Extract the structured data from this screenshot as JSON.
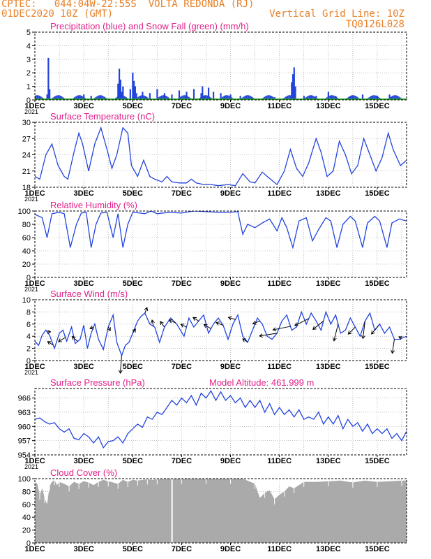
{
  "header": {
    "line1_left": "CPTEC:   044:04W-22:55S  VOLTA REDONDA (RJ)",
    "line2_left": "01DEC2020 10Z (GMT)",
    "line2_right": "Vertical Grid Line: 10Z",
    "line3_right": "TQ0126L028"
  },
  "colors": {
    "title": "#e0218a",
    "series": "#2244dd",
    "snow": "#2a9d2a",
    "cloud": "#aaaaaa",
    "header": "#e8822a"
  },
  "chart_data": [
    {
      "type": "bar",
      "title": "Precipitation (blue) and Snow Fall (green) (mm/h)",
      "ylim": [
        0,
        5
      ],
      "yticks": [
        0,
        1,
        2,
        3,
        4,
        5
      ],
      "xticks": [
        "1DEC",
        "3DEC",
        "5DEC",
        "7DEC",
        "9DEC",
        "11DEC",
        "13DEC",
        "15DEC"
      ],
      "cut_label": "2021",
      "series": [
        {
          "name": "precipitation",
          "x_day": [
            1.5,
            1.55,
            1.6,
            3.0,
            3.3,
            4.4,
            4.45,
            4.5,
            4.55,
            4.6,
            4.9,
            5.0,
            5.05,
            5.1,
            5.15,
            5.4,
            5.7,
            6.0,
            6.3,
            6.6,
            6.9,
            7.2,
            7.5,
            7.8,
            7.85,
            7.9,
            8.1,
            8.3,
            8.6,
            9.0,
            9.4,
            10.8,
            11.5,
            11.55,
            11.6,
            11.65,
            12.0,
            12.5,
            13.0,
            13.3,
            14.0,
            14.4,
            15.0,
            15.5
          ],
          "values": [
            0.4,
            3.1,
            0.8,
            0.4,
            0.3,
            1.2,
            2.3,
            1.5,
            0.6,
            1.0,
            0.8,
            2.0,
            1.4,
            1.0,
            0.5,
            0.6,
            0.5,
            0.8,
            0.5,
            0.4,
            0.7,
            0.6,
            0.8,
            0.5,
            1.0,
            0.3,
            0.9,
            0.6,
            0.5,
            0.4,
            0.3,
            0.2,
            1.3,
            1.9,
            2.4,
            1.0,
            0.3,
            0.3,
            0.6,
            0.3,
            0.3,
            0.4,
            0.3,
            0.4
          ]
        },
        {
          "name": "snow",
          "x_day": [],
          "values": []
        }
      ]
    },
    {
      "type": "line",
      "title": "Surface Temperature (nC)",
      "ylim": [
        18,
        30
      ],
      "yticks": [
        18,
        21,
        24,
        27,
        30
      ],
      "xticks": [
        "1DEC",
        "3DEC",
        "5DEC",
        "7DEC",
        "9DEC",
        "11DEC",
        "13DEC",
        "15DEC"
      ],
      "cut_label": "2021",
      "x_day": [
        1.0,
        1.2,
        1.45,
        1.7,
        1.95,
        2.2,
        2.35,
        2.6,
        2.8,
        2.95,
        3.2,
        3.45,
        3.7,
        3.95,
        4.15,
        4.35,
        4.6,
        4.8,
        4.95,
        5.2,
        5.45,
        5.7,
        5.9,
        6.2,
        6.4,
        6.6,
        6.9,
        7.2,
        7.4,
        7.6,
        7.9,
        8.2,
        8.5,
        8.9,
        9.2,
        9.5,
        9.8,
        10.0,
        10.3,
        10.5,
        10.9,
        11.2,
        11.45,
        11.7,
        11.95,
        12.2,
        12.5,
        12.7,
        12.95,
        13.2,
        13.45,
        13.7,
        13.95,
        14.2,
        14.45,
        14.7,
        14.95,
        15.2,
        15.45,
        15.65,
        15.95,
        16.2
      ],
      "values": [
        20,
        19.5,
        24,
        26,
        22,
        20,
        19.5,
        24.5,
        28,
        26,
        21,
        26,
        29,
        25,
        21.5,
        24,
        29,
        28,
        22,
        20,
        23,
        20,
        19.5,
        19,
        20,
        19,
        18.8,
        18.8,
        19.5,
        18.8,
        18.5,
        18.5,
        18.3,
        18.5,
        18.3,
        20.5,
        19,
        18.8,
        20.8,
        20,
        18.5,
        21,
        25,
        21.5,
        20,
        22.5,
        27,
        24.5,
        20,
        21,
        26.5,
        24,
        20.5,
        22,
        27,
        24,
        21,
        23.5,
        28,
        25,
        22,
        23
      ]
    },
    {
      "type": "line",
      "title": "Relative Humidity (%)",
      "ylim": [
        0,
        100
      ],
      "yticks": [
        0,
        20,
        40,
        60,
        80,
        100
      ],
      "xticks": [
        "1DEC",
        "3DEC",
        "5DEC",
        "7DEC",
        "9DEC",
        "11DEC",
        "13DEC",
        "15DEC"
      ],
      "cut_label": "2021",
      "x_day": [
        1.0,
        1.3,
        1.5,
        1.7,
        2.0,
        2.2,
        2.45,
        2.7,
        2.9,
        3.1,
        3.3,
        3.5,
        3.7,
        3.95,
        4.2,
        4.4,
        4.6,
        4.8,
        5.0,
        5.3,
        5.5,
        5.75,
        6.0,
        6.5,
        7.0,
        7.5,
        8.0,
        8.5,
        9.0,
        9.3,
        9.5,
        9.7,
        10.0,
        10.3,
        10.6,
        10.9,
        11.1,
        11.3,
        11.55,
        11.8,
        12.1,
        12.35,
        12.6,
        12.9,
        13.1,
        13.35,
        13.6,
        13.9,
        14.1,
        14.4,
        14.6,
        14.9,
        15.1,
        15.4,
        15.6,
        15.9,
        16.2
      ],
      "values": [
        95,
        90,
        60,
        96,
        98,
        96,
        45,
        80,
        97,
        98,
        45,
        80,
        97,
        98,
        60,
        96,
        45,
        80,
        98,
        97,
        96,
        100,
        96,
        98,
        97,
        100,
        99,
        98,
        98,
        99,
        65,
        80,
        75,
        82,
        88,
        70,
        90,
        75,
        45,
        85,
        90,
        55,
        72,
        90,
        85,
        45,
        80,
        92,
        85,
        45,
        82,
        92,
        85,
        45,
        82,
        88,
        85
      ]
    },
    {
      "type": "line",
      "title": "Surface Wind (m/s)",
      "ylim": [
        0,
        10
      ],
      "yticks": [
        0,
        2,
        4,
        6,
        8,
        10
      ],
      "xticks": [
        "1DEC",
        "3DEC",
        "5DEC",
        "7DEC",
        "9DEC",
        "11DEC",
        "13DEC",
        "15DEC"
      ],
      "cut_label": "2021",
      "x_day": [
        1.0,
        1.15,
        1.3,
        1.45,
        1.6,
        1.8,
        2.0,
        2.15,
        2.3,
        2.5,
        2.65,
        2.85,
        3.0,
        3.15,
        3.3,
        3.45,
        3.6,
        3.8,
        4.0,
        4.2,
        4.35,
        4.55,
        4.7,
        4.85,
        5.0,
        5.2,
        5.35,
        5.5,
        5.7,
        5.9,
        6.1,
        6.3,
        6.55,
        6.8,
        7.1,
        7.3,
        7.5,
        7.7,
        7.9,
        8.1,
        8.3,
        8.5,
        8.7,
        8.9,
        9.1,
        9.3,
        9.5,
        9.7,
        9.9,
        10.1,
        10.3,
        10.5,
        10.7,
        10.9,
        11.1,
        11.3,
        11.5,
        11.7,
        11.9,
        12.1,
        12.3,
        12.5,
        12.7,
        12.9,
        13.1,
        13.3,
        13.5,
        13.7,
        13.9,
        14.1,
        14.3,
        14.5,
        14.7,
        14.9,
        15.1,
        15.3,
        15.5,
        15.7,
        15.9,
        16.2
      ],
      "values": [
        3.2,
        2.5,
        4.2,
        5.0,
        4.2,
        2.0,
        4.5,
        5.0,
        3.2,
        5.5,
        2.8,
        3.5,
        5.8,
        2.0,
        4.5,
        6.0,
        3.5,
        1.8,
        5.5,
        7.5,
        3.0,
        0.8,
        2.5,
        3.0,
        4.5,
        6.5,
        7.3,
        7.8,
        6.0,
        5.5,
        3.0,
        5.5,
        7.0,
        6.0,
        4.0,
        7.0,
        5.5,
        6.5,
        7.5,
        4.5,
        6.0,
        7.0,
        5.8,
        3.5,
        6.0,
        7.5,
        4.0,
        3.0,
        5.0,
        7.0,
        6.0,
        4.0,
        3.5,
        4.5,
        6.5,
        7.5,
        5.0,
        5.5,
        8.0,
        6.0,
        7.8,
        6.5,
        5.0,
        8.0,
        6.0,
        7.5,
        4.5,
        5.0,
        7.0,
        5.5,
        4.0,
        6.5,
        7.8,
        5.0,
        6.0,
        4.5,
        5.5,
        3.5,
        3.5,
        4.0
      ],
      "vectors": {
        "x_day": [
          1.5,
          1.75,
          2.25,
          2.75,
          3.4,
          4.0,
          4.55,
          5.0,
          5.5,
          5.85,
          6.3,
          6.75,
          7.2,
          7.7,
          8.2,
          8.7,
          9.2,
          9.7,
          10.2,
          10.9,
          11.45,
          12.2,
          12.8,
          13.4,
          14.1,
          14.5,
          15.05,
          15.7,
          16.0
        ],
        "u": [
          0.5,
          -0.8,
          -1.0,
          -0.8,
          -0.5,
          0.3,
          -0.2,
          0.4,
          0.3,
          -0.2,
          -0.6,
          -0.9,
          -0.8,
          -0.8,
          -1.0,
          -1.0,
          -1.0,
          -0.7,
          -1.0,
          -2.5,
          -2.5,
          -2.0,
          -1.5,
          -0.6,
          -1.0,
          -0.3,
          -1.0,
          -0.3,
          -0.4
        ],
        "v": [
          0.0,
          0.5,
          -0.6,
          0.7,
          -0.2,
          -0.5,
          -2.5,
          0.6,
          0.8,
          0.9,
          0.8,
          0.4,
          0.4,
          0.5,
          0.6,
          0.4,
          0.3,
          0.5,
          -0.4,
          -0.4,
          -0.5,
          -1.0,
          -1.2,
          -2.4,
          -1.0,
          -2.5,
          -1.2,
          -2.0,
          0.2
        ]
      }
    },
    {
      "type": "line",
      "title": "Surface Pressure (hPa)",
      "extra_label": "Model Altitude: 461.999 m",
      "ylim": [
        954,
        968
      ],
      "yticks": [
        954,
        957,
        960,
        963,
        966
      ],
      "xticks": [
        "1DEC",
        "3DEC",
        "5DEC",
        "7DEC",
        "9DEC",
        "11DEC",
        "13DEC",
        "15DEC"
      ],
      "cut_label": "2021",
      "x_day": [
        1.0,
        1.2,
        1.4,
        1.6,
        1.8,
        2.0,
        2.2,
        2.4,
        2.6,
        2.8,
        3.0,
        3.2,
        3.4,
        3.6,
        3.8,
        4.0,
        4.2,
        4.4,
        4.6,
        4.8,
        5.0,
        5.2,
        5.4,
        5.6,
        5.8,
        6.0,
        6.2,
        6.4,
        6.6,
        6.8,
        7.0,
        7.2,
        7.4,
        7.6,
        7.8,
        8.0,
        8.2,
        8.4,
        8.6,
        8.8,
        9.0,
        9.2,
        9.4,
        9.6,
        9.8,
        10.0,
        10.2,
        10.4,
        10.6,
        10.8,
        11.0,
        11.2,
        11.4,
        11.6,
        11.8,
        12.0,
        12.2,
        12.4,
        12.6,
        12.8,
        13.0,
        13.2,
        13.4,
        13.6,
        13.8,
        14.0,
        14.2,
        14.4,
        14.6,
        14.8,
        15.0,
        15.2,
        15.4,
        15.6,
        15.8,
        16.0,
        16.2
      ],
      "values": [
        961.5,
        961.8,
        961.0,
        960.5,
        960.8,
        959.5,
        958.8,
        959.5,
        957.5,
        957.2,
        958.5,
        957.8,
        956.5,
        957.8,
        955.5,
        956.8,
        957.0,
        957.8,
        956.5,
        958.5,
        959.5,
        960.5,
        959.8,
        962.0,
        961.5,
        963.0,
        962.5,
        964.0,
        965.5,
        964.5,
        966.0,
        965.0,
        966.5,
        964.5,
        967.0,
        966.0,
        967.5,
        965.5,
        967.3,
        965.5,
        966.5,
        965.0,
        966.0,
        964.0,
        965.5,
        964.0,
        965.5,
        963.0,
        964.8,
        962.5,
        964.0,
        962.5,
        963.5,
        962.0,
        963.5,
        961.5,
        962.0,
        961.5,
        963.0,
        960.5,
        962.0,
        960.5,
        962.3,
        959.5,
        961.5,
        960.0,
        960.8,
        959.0,
        960.5,
        958.5,
        959.5,
        958.5,
        959.5,
        957.5,
        958.5,
        957.0,
        959.0
      ]
    },
    {
      "type": "area",
      "title": "Cloud Cover (%)",
      "ylim": [
        0,
        100
      ],
      "yticks": [
        0,
        20,
        40,
        60,
        80,
        100
      ],
      "xticks": [
        "1DEC",
        "3DEC",
        "5DEC",
        "7DEC",
        "9DEC",
        "11DEC",
        "13DEC",
        "15DEC"
      ],
      "x_day": [
        1.0,
        1.1,
        1.2,
        1.3,
        1.4,
        1.5,
        1.6,
        1.7,
        1.8,
        1.9,
        2.0,
        2.2,
        2.4,
        2.6,
        2.8,
        3.0,
        3.2,
        3.4,
        3.6,
        3.8,
        4.0,
        4.2,
        4.4,
        4.6,
        4.8,
        5.0,
        5.2,
        5.4,
        5.6,
        5.8,
        6.0,
        6.5,
        7.0,
        7.5,
        8.0,
        8.5,
        9.0,
        9.5,
        10.0,
        10.2,
        10.4,
        10.6,
        10.8,
        11.0,
        11.2,
        11.4,
        11.6,
        11.8,
        12.0,
        12.5,
        13.0,
        13.5,
        14.0,
        14.5,
        15.0,
        15.5,
        16.0,
        16.2
      ],
      "values": [
        95,
        92,
        75,
        85,
        70,
        60,
        88,
        95,
        98,
        90,
        95,
        92,
        88,
        95,
        92,
        96,
        94,
        90,
        95,
        98,
        96,
        94,
        92,
        98,
        95,
        98,
        97,
        98,
        99,
        98,
        99,
        100,
        100,
        100,
        100,
        100,
        100,
        100,
        92,
        70,
        78,
        82,
        68,
        75,
        80,
        88,
        85,
        90,
        95,
        95,
        96,
        97,
        94,
        97,
        95,
        96,
        97,
        97
      ],
      "gap_x_day": 6.58
    }
  ]
}
